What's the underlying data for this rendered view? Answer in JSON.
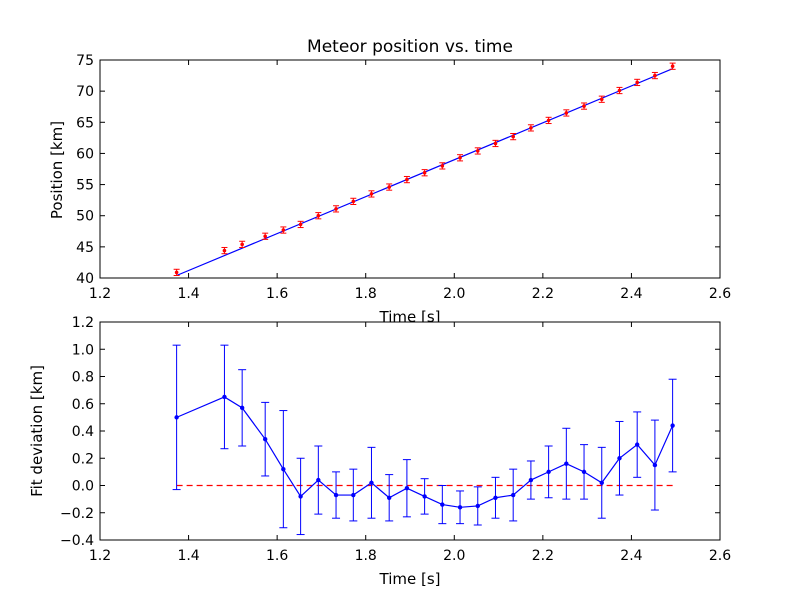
{
  "chart_data": [
    {
      "type": "scatter",
      "title": "Meteor position vs. time",
      "xlabel": "Time [s]",
      "ylabel": "Position [km]",
      "xlim": [
        1.2,
        2.6
      ],
      "ylim": [
        40,
        75
      ],
      "xticks": [
        "1.2",
        "1.4",
        "1.6",
        "1.8",
        "2.0",
        "2.2",
        "2.4",
        "2.6"
      ],
      "yticks": [
        "40",
        "45",
        "50",
        "55",
        "60",
        "65",
        "70",
        "75"
      ],
      "grid": false,
      "colors": {
        "points": "#ff0000",
        "fit": "#0000ff"
      },
      "series": [
        {
          "kind": "points-with-errorbars",
          "x": [
            1.373,
            1.481,
            1.521,
            1.573,
            1.614,
            1.653,
            1.693,
            1.733,
            1.772,
            1.813,
            1.853,
            1.893,
            1.933,
            1.973,
            2.013,
            2.053,
            2.093,
            2.133,
            2.173,
            2.213,
            2.253,
            2.293,
            2.333,
            2.373,
            2.413,
            2.453,
            2.493
          ],
          "y": [
            40.9,
            44.4,
            45.4,
            46.7,
            47.7,
            48.6,
            50.0,
            51.1,
            52.3,
            53.5,
            54.6,
            55.8,
            56.9,
            58.0,
            59.3,
            60.4,
            61.6,
            62.7,
            64.1,
            65.3,
            66.5,
            67.6,
            68.7,
            70.1,
            71.4,
            72.5,
            74.0
          ],
          "yerr": 0.5
        },
        {
          "kind": "fit-line",
          "x": [
            1.373,
            2.493
          ],
          "y": [
            40.4,
            73.6
          ]
        }
      ]
    },
    {
      "type": "line",
      "xlabel": "Time [s]",
      "ylabel": "Fit deviation [km]",
      "xlim": [
        1.2,
        2.6
      ],
      "ylim": [
        -0.4,
        1.2
      ],
      "xticks": [
        "1.2",
        "1.4",
        "1.6",
        "1.8",
        "2.0",
        "2.2",
        "2.4",
        "2.6"
      ],
      "yticks": [
        "−0.4",
        "−0.2",
        "0.0",
        "0.2",
        "0.4",
        "0.6",
        "0.8",
        "1.0",
        "1.2"
      ],
      "grid": false,
      "colors": {
        "line": "#0000ff",
        "zero": "#ff0000"
      },
      "series": [
        {
          "kind": "line-with-errorbars",
          "x": [
            1.373,
            1.481,
            1.521,
            1.573,
            1.614,
            1.653,
            1.693,
            1.733,
            1.772,
            1.813,
            1.853,
            1.893,
            1.933,
            1.973,
            2.013,
            2.053,
            2.093,
            2.133,
            2.173,
            2.213,
            2.253,
            2.293,
            2.333,
            2.373,
            2.413,
            2.453,
            2.493
          ],
          "y": [
            0.5,
            0.65,
            0.57,
            0.34,
            0.12,
            -0.08,
            0.04,
            -0.07,
            -0.07,
            0.02,
            -0.09,
            -0.02,
            -0.08,
            -0.14,
            -0.16,
            -0.15,
            -0.09,
            -0.07,
            0.04,
            0.1,
            0.16,
            0.1,
            0.02,
            0.2,
            0.3,
            0.15,
            0.44
          ],
          "yerr": [
            0.53,
            0.38,
            0.28,
            0.27,
            0.43,
            0.28,
            0.25,
            0.17,
            0.19,
            0.26,
            0.17,
            0.21,
            0.13,
            0.14,
            0.12,
            0.14,
            0.15,
            0.19,
            0.14,
            0.19,
            0.26,
            0.2,
            0.26,
            0.27,
            0.24,
            0.33,
            0.34
          ]
        },
        {
          "kind": "zero-reference",
          "x": [
            1.373,
            2.493
          ],
          "y": [
            0.0,
            0.0
          ],
          "style": "dashed"
        }
      ]
    }
  ]
}
